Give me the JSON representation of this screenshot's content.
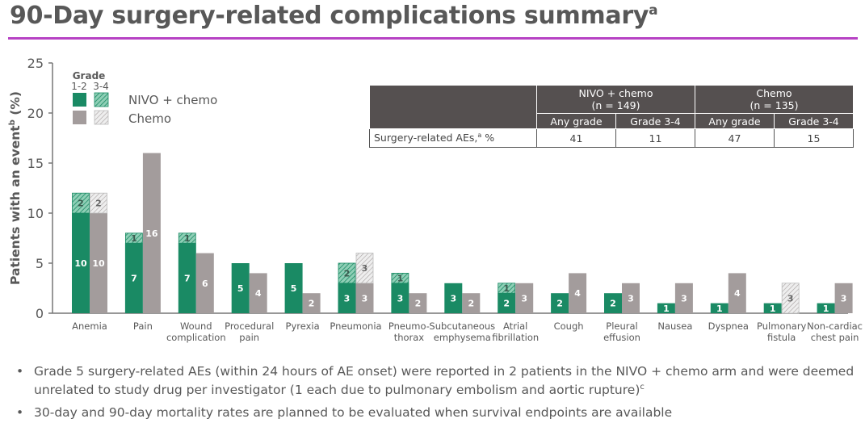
{
  "title": "90-Day surgery-related complications summary",
  "title_sup": "a",
  "colors": {
    "accent_rule": "#b742c4",
    "nivo": "#1a8a64",
    "chemo": "#a39c9c",
    "table_header": "#555050"
  },
  "legend": {
    "heading": "Grade",
    "col1": "1-2",
    "col2": "3-4",
    "nivo_label": "NIVO + chemo",
    "chemo_label": "Chemo"
  },
  "summary_table": {
    "groups": [
      {
        "name": "NIVO + chemo",
        "n": "(n = 149)"
      },
      {
        "name": "Chemo",
        "n": "(n = 135)"
      }
    ],
    "subheaders": [
      "Any grade",
      "Grade 3-4",
      "Any grade",
      "Grade 3-4"
    ],
    "row_label": "Surgery-related AEs,",
    "row_label_sup": "a",
    "row_label_unit": " %",
    "values": [
      "41",
      "11",
      "47",
      "15"
    ]
  },
  "chart_data": {
    "type": "bar",
    "stacked": true,
    "ylabel": "Patients with an event",
    "ylabel_sup": "b",
    "ylabel_unit": " (%)",
    "ylim": [
      0,
      25
    ],
    "yticks": [
      "0",
      "5",
      "10",
      "15",
      "20",
      "25"
    ],
    "grid": false,
    "legend_position": "top-left",
    "categories": [
      [
        "Anemia"
      ],
      [
        "Pain"
      ],
      [
        "Wound",
        "complication"
      ],
      [
        "Procedural",
        "pain"
      ],
      [
        "Pyrexia"
      ],
      [
        "Pneumonia"
      ],
      [
        "Pneumo-",
        "thorax"
      ],
      [
        "Subcutaneous",
        "emphysema"
      ],
      [
        "Atrial",
        "fibrillation"
      ],
      [
        "Cough"
      ],
      [
        "Pleural",
        "effusion"
      ],
      [
        "Nausea"
      ],
      [
        "Dyspnea"
      ],
      [
        "Pulmonary",
        "fistula"
      ],
      [
        "Non-cardiac",
        "chest pain"
      ]
    ],
    "series": [
      {
        "name": "NIVO + chemo",
        "grade_1_2": [
          10,
          7,
          7,
          5,
          5,
          3,
          3,
          3,
          2,
          2,
          2,
          1,
          1,
          1,
          1
        ],
        "grade_3_4": [
          2,
          1,
          1,
          0,
          0,
          2,
          1,
          0,
          1,
          0,
          0,
          0,
          0,
          0,
          0
        ]
      },
      {
        "name": "Chemo",
        "grade_1_2": [
          10,
          16,
          6,
          4,
          2,
          3,
          2,
          2,
          3,
          4,
          3,
          3,
          4,
          0,
          3
        ],
        "grade_3_4": [
          2,
          0,
          0,
          0,
          0,
          3,
          0,
          0,
          0,
          0,
          0,
          0,
          0,
          3,
          0
        ]
      }
    ]
  },
  "bullets": [
    "Grade 5 surgery-related AEs (within 24 hours of AE onset) were reported in 2 patients in the NIVO + chemo arm and were deemed unrelated to study drug per investigator (1 each due to pulmonary embolism and aortic rupture)",
    "30-day and 90-day mortality rates are planned to be evaluated when survival endpoints are available"
  ],
  "bullet_1_sup": "c"
}
